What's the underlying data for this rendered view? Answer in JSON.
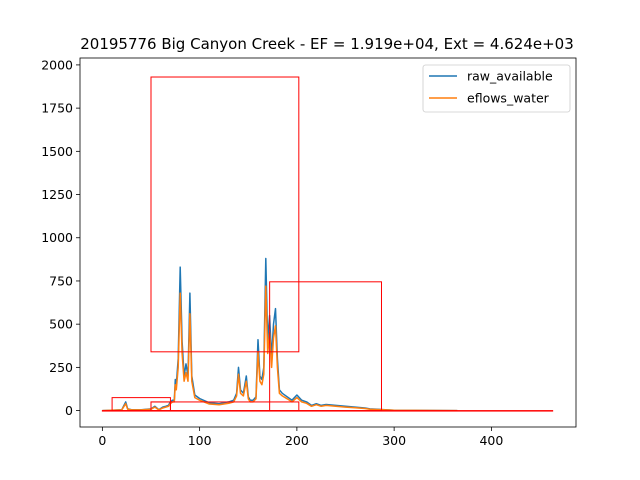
{
  "chart_data": {
    "type": "line",
    "title": "20195776 Big Canyon Creek - EF = 1.919e+04, Ext = 4.624e+03",
    "xlabel": "",
    "ylabel": "",
    "xlim": [
      -23,
      487
    ],
    "ylim": [
      -95,
      2040
    ],
    "xticks": [
      0,
      100,
      200,
      300,
      400
    ],
    "yticks": [
      0,
      250,
      500,
      750,
      1000,
      1250,
      1500,
      1750,
      2000
    ],
    "grid": false,
    "legend_position": "top-right",
    "series": [
      {
        "name": "raw_available",
        "color": "#1f77b4",
        "x": [
          0,
          10,
          20,
          24,
          26,
          30,
          40,
          50,
          54,
          58,
          62,
          65,
          68,
          70,
          72,
          74,
          75,
          76,
          78,
          80,
          82,
          84,
          86,
          88,
          90,
          92,
          95,
          100,
          110,
          120,
          130,
          135,
          138,
          140,
          142,
          145,
          148,
          150,
          152,
          155,
          158,
          160,
          162,
          164,
          166,
          168,
          170,
          172,
          174,
          176,
          178,
          180,
          182,
          185,
          190,
          195,
          200,
          205,
          210,
          215,
          220,
          225,
          230,
          240,
          250,
          260,
          270,
          275,
          300,
          365
        ],
        "y": [
          0,
          2,
          5,
          50,
          10,
          5,
          5,
          10,
          25,
          5,
          20,
          25,
          30,
          50,
          60,
          60,
          180,
          150,
          300,
          830,
          400,
          200,
          270,
          200,
          680,
          200,
          90,
          70,
          45,
          40,
          50,
          60,
          100,
          250,
          120,
          100,
          200,
          80,
          60,
          60,
          80,
          410,
          200,
          180,
          250,
          880,
          400,
          550,
          300,
          500,
          590,
          300,
          120,
          100,
          80,
          60,
          90,
          60,
          50,
          30,
          40,
          30,
          35,
          30,
          25,
          20,
          15,
          10,
          2,
          0
        ]
      },
      {
        "name": "eflows_water",
        "color": "#ff7f0e",
        "x": [
          0,
          10,
          20,
          24,
          26,
          30,
          40,
          50,
          54,
          58,
          62,
          65,
          68,
          70,
          72,
          74,
          75,
          76,
          78,
          80,
          82,
          84,
          86,
          88,
          90,
          92,
          95,
          100,
          110,
          120,
          130,
          135,
          138,
          140,
          142,
          145,
          148,
          150,
          152,
          155,
          158,
          160,
          162,
          164,
          166,
          168,
          170,
          172,
          174,
          176,
          178,
          180,
          182,
          185,
          190,
          195,
          200,
          205,
          210,
          215,
          220,
          225,
          230,
          240,
          250,
          260,
          270,
          275,
          300,
          365
        ],
        "y": [
          0,
          2,
          4,
          40,
          8,
          4,
          4,
          8,
          20,
          4,
          15,
          20,
          25,
          40,
          50,
          50,
          150,
          120,
          250,
          680,
          330,
          170,
          220,
          170,
          560,
          170,
          75,
          60,
          38,
          34,
          42,
          50,
          85,
          210,
          100,
          85,
          170,
          68,
          50,
          50,
          68,
          340,
          170,
          150,
          210,
          720,
          330,
          450,
          250,
          420,
          490,
          250,
          100,
          85,
          68,
          50,
          75,
          50,
          42,
          25,
          34,
          25,
          30,
          25,
          20,
          16,
          12,
          8,
          2,
          0
        ]
      }
    ],
    "annotations": {
      "rectangles": [
        {
          "x0": 50,
          "x1": 202,
          "y0": 340,
          "y1": 1930
        },
        {
          "x0": 172,
          "x1": 287,
          "y0": 0,
          "y1": 745
        },
        {
          "x0": 10,
          "x1": 70,
          "y0": 0,
          "y1": 75
        },
        {
          "x0": 50,
          "x1": 202,
          "y0": 0,
          "y1": 50
        },
        {
          "x0": 50,
          "x1": 70,
          "y0": 0,
          "y1": 50
        },
        {
          "x0": 0,
          "x1": 463,
          "y0": 0,
          "y1": 0
        }
      ],
      "color": "#ff0000"
    }
  }
}
